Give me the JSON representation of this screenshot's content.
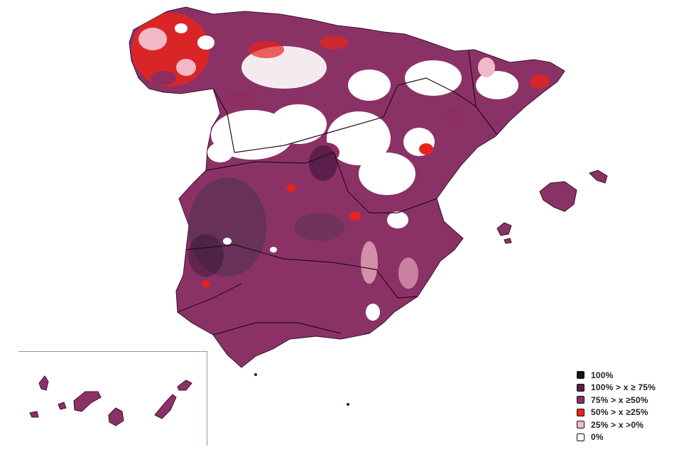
{
  "map": {
    "region": "Spain (peninsula, Balearic Islands, Canary Islands inset)",
    "fill_colors": {
      "cat_100": "#1c0d1e",
      "cat_75_100": "#5a1f4a",
      "cat_50_75": "#8e2e5e",
      "cat_25_50": "#e8231c",
      "cat_0_25": "#f2b8c6",
      "cat_0": "#ffffff",
      "base_fill": "#8a3266",
      "dark_fill": "#4a3250",
      "border": "#3a1030"
    }
  },
  "legend": {
    "items": [
      {
        "label": "100%",
        "color": "#1c0d1e"
      },
      {
        "label": "100% > x ≥ 75%",
        "color": "#5a1f4a"
      },
      {
        "label": "75% > x ≥50%",
        "color": "#8e2e5e"
      },
      {
        "label": "50% > x ≥25%",
        "color": "#e8231c"
      },
      {
        "label": "25% > x >0%",
        "color": "#f2b8c6"
      },
      {
        "label": "0%",
        "color": "#ffffff"
      }
    ]
  }
}
